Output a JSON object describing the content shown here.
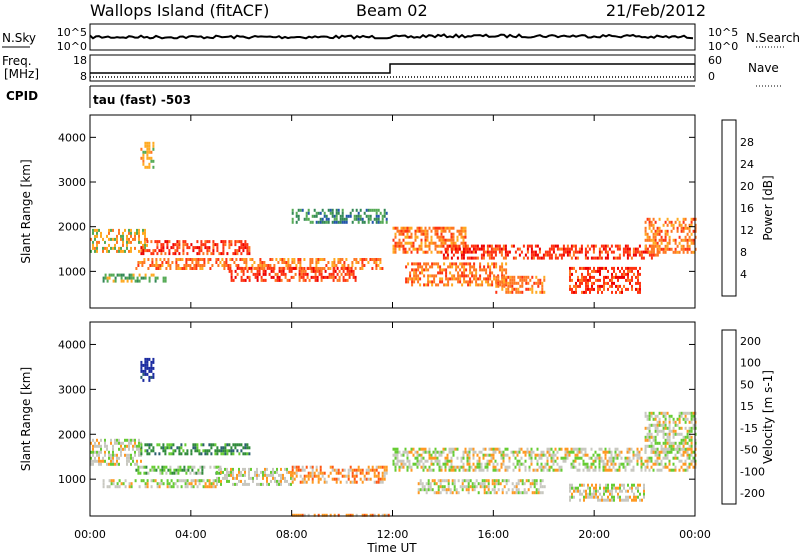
{
  "header": {
    "station": "Wallops Island (fitACF)",
    "beam": "Beam 02",
    "date": "21/Feb/2012"
  },
  "top_panels": {
    "nsky_label": "N.Sky",
    "nsearch_label": "N.Search",
    "nsky_ticks": [
      "10^5",
      "10^0"
    ],
    "nsearch_ticks": [
      "10^5",
      "10^0"
    ],
    "freq_label": "Freq.",
    "freq_unit": "[MHz]",
    "freq_ticks": [
      "18",
      "8"
    ],
    "nave_label": "Nave",
    "nave_ticks": [
      "60",
      "0"
    ],
    "cpid_label": "CPID",
    "cpid_text": "tau (fast) -503"
  },
  "chart_data": [
    {
      "type": "heatmap",
      "panel": "power",
      "ylabel": "Slant Range [km]",
      "y_ticks": [
        "1000",
        "2000",
        "3000",
        "4000"
      ],
      "y_values": [
        1000,
        2000,
        3000,
        4000
      ],
      "ylim": [
        180,
        4500
      ],
      "xlim_hours": [
        0,
        24
      ],
      "colorbar_label": "Power [dB]",
      "colorbar_ticks": [
        "4",
        "8",
        "12",
        "16",
        "20",
        "24",
        "28"
      ],
      "colorbar_colors": [
        "#1a1aff",
        "#2255aa",
        "#338855",
        "#55aa55",
        "#ffaa22",
        "#ff7722",
        "#ff3311",
        "#ee0000"
      ],
      "echo_bands": [
        {
          "t0": 0.0,
          "t1": 2.3,
          "r0": 1450,
          "r1": 1950,
          "level": 4
        },
        {
          "t0": 2.0,
          "t1": 6.3,
          "r0": 1400,
          "r1": 1700,
          "level": 6
        },
        {
          "t0": 1.8,
          "t1": 11.6,
          "r0": 1050,
          "r1": 1300,
          "level": 5
        },
        {
          "t0": 5.5,
          "t1": 10.5,
          "r0": 800,
          "r1": 1100,
          "level": 6
        },
        {
          "t0": 0.5,
          "t1": 3.0,
          "r0": 800,
          "r1": 950,
          "level": 3
        },
        {
          "t0": 8.0,
          "t1": 11.8,
          "r0": 2100,
          "r1": 2400,
          "level": 2
        },
        {
          "t0": 12.0,
          "t1": 15.0,
          "r0": 1400,
          "r1": 2000,
          "level": 5
        },
        {
          "t0": 12.5,
          "t1": 16.5,
          "r0": 700,
          "r1": 1200,
          "level": 5
        },
        {
          "t0": 14.0,
          "t1": 22.5,
          "r0": 1300,
          "r1": 1600,
          "level": 6
        },
        {
          "t0": 16.0,
          "t1": 18.0,
          "r0": 500,
          "r1": 900,
          "level": 5
        },
        {
          "t0": 19.0,
          "t1": 21.8,
          "r0": 500,
          "r1": 1100,
          "level": 6
        },
        {
          "t0": 22.0,
          "t1": 24.0,
          "r0": 1400,
          "r1": 2200,
          "level": 5
        },
        {
          "t0": 2.0,
          "t1": 2.5,
          "r0": 3300,
          "r1": 3900,
          "level": 4
        }
      ]
    },
    {
      "type": "heatmap",
      "panel": "velocity",
      "ylabel": "Slant Range [km]",
      "y_ticks": [
        "1000",
        "2000",
        "3000",
        "4000"
      ],
      "y_values": [
        1000,
        2000,
        3000,
        4000
      ],
      "ylim": [
        180,
        4500
      ],
      "xlim_hours": [
        0,
        24
      ],
      "colorbar_label": "Velocity [m s-1]",
      "colorbar_ticks": [
        "200",
        "100",
        "50",
        "15",
        "-15",
        "-50",
        "-100",
        "-200"
      ],
      "colorbar_colors": [
        "#1a2aa0",
        "#2a5f6f",
        "#2f8a3a",
        "#66cc33",
        "#c8c8c0",
        "#ff9922",
        "#ff5511",
        "#ee0000"
      ],
      "echo_bands": [
        {
          "t0": 0.0,
          "t1": 2.0,
          "r0": 1300,
          "r1": 1900,
          "level": 4
        },
        {
          "t0": 2.0,
          "t1": 6.3,
          "r0": 1550,
          "r1": 1800,
          "level": 2
        },
        {
          "t0": 1.8,
          "t1": 5.2,
          "r0": 1150,
          "r1": 1300,
          "level": 3
        },
        {
          "t0": 5.0,
          "t1": 8.0,
          "r0": 850,
          "r1": 1250,
          "level": 4
        },
        {
          "t0": 8.0,
          "t1": 11.8,
          "r0": 950,
          "r1": 1300,
          "level": 5
        },
        {
          "t0": 0.5,
          "t1": 5.0,
          "r0": 800,
          "r1": 1000,
          "level": 4
        },
        {
          "t0": 12.0,
          "t1": 24.0,
          "r0": 1200,
          "r1": 1700,
          "level": 4
        },
        {
          "t0": 13.0,
          "t1": 18.0,
          "r0": 700,
          "r1": 1000,
          "level": 4
        },
        {
          "t0": 19.0,
          "t1": 22.0,
          "r0": 500,
          "r1": 900,
          "level": 4
        },
        {
          "t0": 22.0,
          "t1": 24.0,
          "r0": 1600,
          "r1": 2500,
          "level": 4
        },
        {
          "t0": 2.0,
          "t1": 2.5,
          "r0": 3200,
          "r1": 3700,
          "level": 0
        },
        {
          "t0": 8.0,
          "t1": 12.0,
          "r0": 180,
          "r1": 230,
          "level": 5
        }
      ]
    }
  ],
  "x_axis": {
    "label": "Time UT",
    "ticks": [
      "00:00",
      "04:00",
      "08:00",
      "12:00",
      "16:00",
      "20:00",
      "00:00"
    ],
    "tick_hours": [
      0,
      4,
      8,
      12,
      16,
      20,
      24
    ]
  }
}
